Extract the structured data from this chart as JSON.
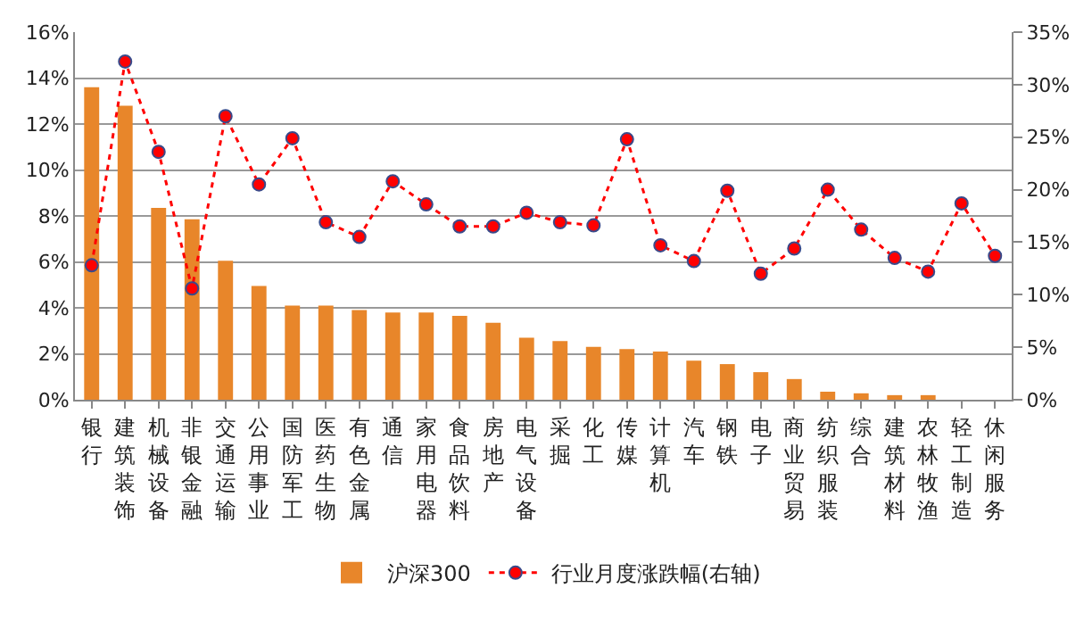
{
  "chart_data": {
    "type": "bar",
    "categories": [
      "银行",
      "建筑装饰",
      "机械设备",
      "非银金融",
      "交通运输",
      "公用事业",
      "国防军工",
      "医药生物",
      "有色金属",
      "通信",
      "家用电器",
      "食品饮料",
      "房地产",
      "电气设备",
      "采掘",
      "化工",
      "传媒",
      "计算机",
      "汽车",
      "钢铁",
      "电子",
      "商业贸易",
      "纺织服装",
      "综合",
      "建筑材料",
      "农林牧渔",
      "轻工制造",
      "休闲服务"
    ],
    "series": [
      {
        "name": "沪深300",
        "color": "#e8862a",
        "values": [
          13.6,
          12.8,
          8.35,
          7.85,
          6.05,
          4.95,
          4.1,
          4.1,
          3.9,
          3.8,
          3.8,
          3.65,
          3.35,
          2.7,
          2.55,
          2.3,
          2.2,
          2.1,
          1.7,
          1.55,
          1.2,
          0.9,
          0.35,
          0.28,
          0.2,
          0.2,
          0,
          0
        ]
      },
      {
        "name": "行业月度涨跌幅(右轴)",
        "type": "line",
        "axis": "y2",
        "color": "#ff0000",
        "marker": "circle",
        "line_style": "dotted",
        "values": [
          12.8,
          32.2,
          23.6,
          10.6,
          27.0,
          20.5,
          24.9,
          16.9,
          15.5,
          20.8,
          18.6,
          16.5,
          16.5,
          17.8,
          16.9,
          16.6,
          24.8,
          14.7,
          13.2,
          19.9,
          12.0,
          14.4,
          20.0,
          16.2,
          13.5,
          12.2,
          18.7,
          13.7
        ]
      }
    ],
    "ylim": [
      0,
      16
    ],
    "yticks": [
      {
        "value": 0,
        "label": "0%"
      },
      {
        "value": 2,
        "label": "2%"
      },
      {
        "value": 4,
        "label": "4%"
      },
      {
        "value": 6,
        "label": "6%"
      },
      {
        "value": 8,
        "label": "8%"
      },
      {
        "value": 10,
        "label": "10%"
      },
      {
        "value": 12,
        "label": "12%"
      },
      {
        "value": 14,
        "label": "14%"
      },
      {
        "value": 16,
        "label": "16%"
      }
    ],
    "y2lim": [
      0,
      35
    ],
    "y2ticks": [
      {
        "value": 0,
        "label": "0%"
      },
      {
        "value": 5,
        "label": "5%"
      },
      {
        "value": 10,
        "label": "10%"
      },
      {
        "value": 15,
        "label": "15%"
      },
      {
        "value": 20,
        "label": "20%"
      },
      {
        "value": 25,
        "label": "25%"
      },
      {
        "value": 30,
        "label": "30%"
      },
      {
        "value": 35,
        "label": "35%"
      }
    ],
    "grid": "y",
    "legend": "bottom"
  }
}
